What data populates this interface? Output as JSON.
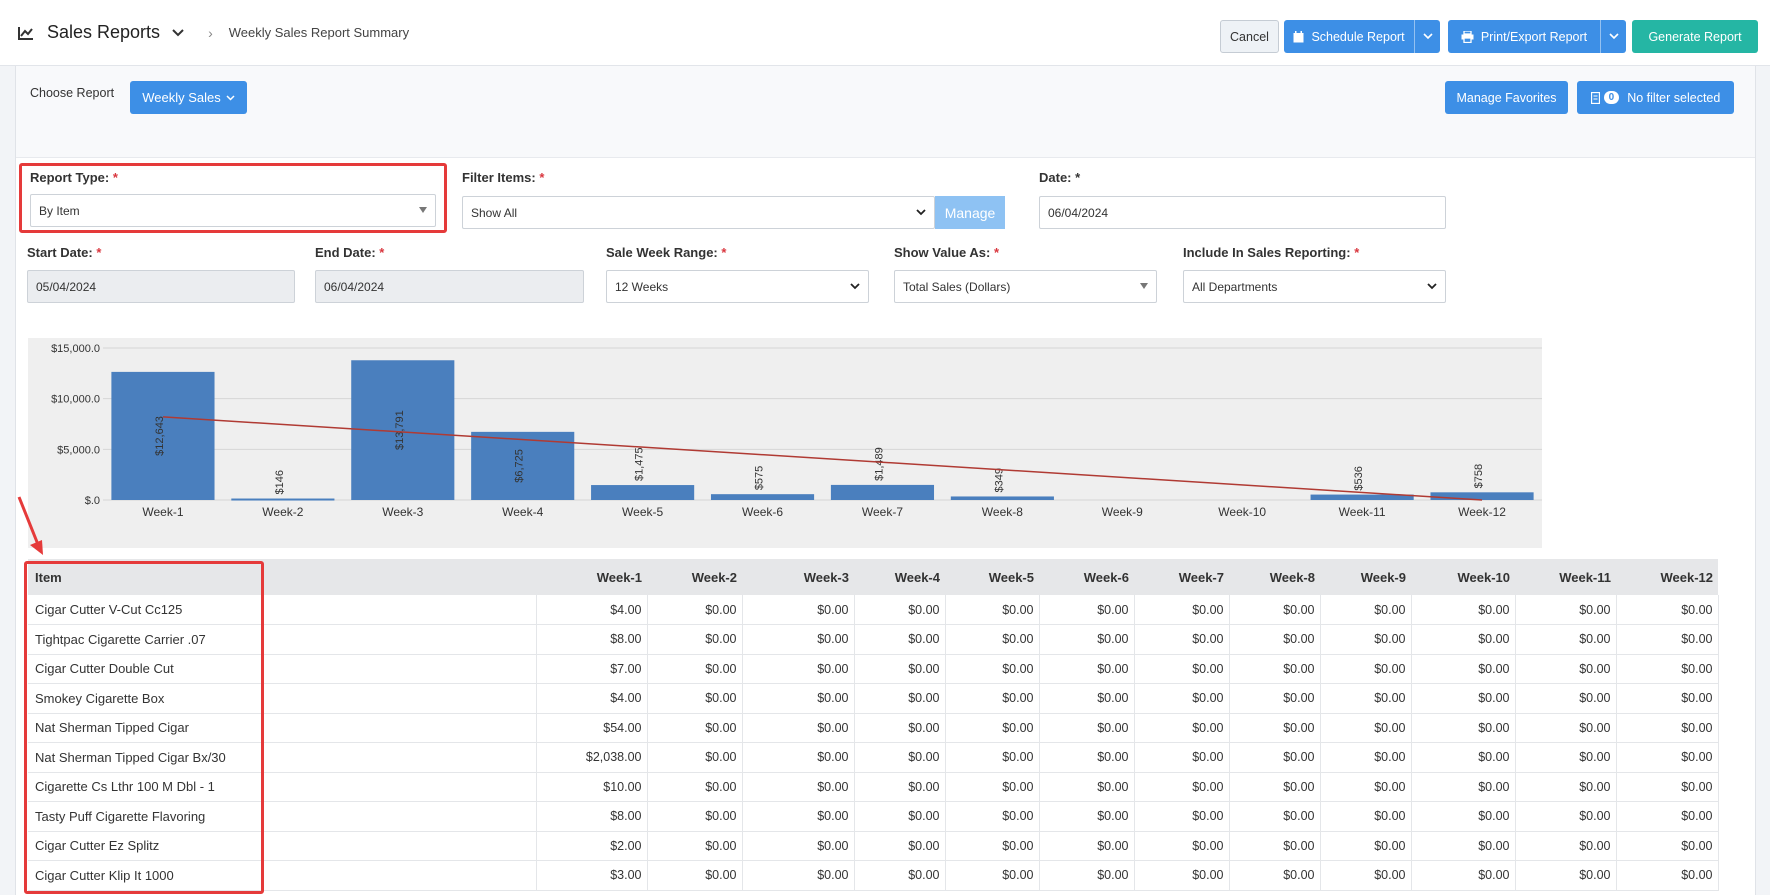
{
  "header": {
    "app_title": "Sales Reports",
    "breadcrumb": "Weekly Sales Report Summary",
    "cancel": "Cancel",
    "schedule": "Schedule Report",
    "print_export": "Print/Export Report",
    "generate": "Generate Report"
  },
  "toolbar": {
    "choose_report_label": "Choose Report",
    "report_selected": "Weekly Sales",
    "manage_favorites": "Manage Favorites",
    "filter_count": "0",
    "filter_label": "No filter selected"
  },
  "form": {
    "report_type_label": "Report Type:",
    "report_type_value": "By Item",
    "filter_items_label": "Filter Items:",
    "filter_items_value": "Show All",
    "manage": "Manage",
    "date_label": "Date:",
    "date_value": "06/04/2024",
    "start_date_label": "Start Date:",
    "start_date_value": "05/04/2024",
    "end_date_label": "End Date:",
    "end_date_value": "06/04/2024",
    "week_range_label": "Sale Week Range:",
    "week_range_value": "12 Weeks",
    "show_value_label": "Show Value As:",
    "show_value_value": "Total Sales (Dollars)",
    "include_label": "Include In Sales Reporting:",
    "include_value": "All Departments",
    "required_mark": "*"
  },
  "chart_data": {
    "type": "bar",
    "categories": [
      "Week-1",
      "Week-2",
      "Week-3",
      "Week-4",
      "Week-5",
      "Week-6",
      "Week-7",
      "Week-8",
      "Week-9",
      "Week-10",
      "Week-11",
      "Week-12"
    ],
    "values": [
      12643,
      146,
      13791,
      6725,
      1475,
      575,
      1489,
      349,
      0,
      0,
      536,
      758
    ],
    "value_labels": [
      "$12,643",
      "$146",
      "$13,791",
      "$6,725",
      "$1,475",
      "$575",
      "$1,489",
      "$349",
      "",
      "",
      "$536",
      "$758"
    ],
    "yticks": [
      "$.0",
      "$5,000.0",
      "$10,000.0",
      "$15,000.0"
    ],
    "ytick_values": [
      0,
      5000,
      10000,
      15000
    ],
    "ylim": [
      0,
      15000
    ],
    "trendline": {
      "start": 8200,
      "end": 0
    },
    "bar_color": "#4a7fbe",
    "trend_color": "#b03a33"
  },
  "table": {
    "columns": [
      "Item",
      "Week-1",
      "Week-2",
      "Week-3",
      "Week-4",
      "Week-5",
      "Week-6",
      "Week-7",
      "Week-8",
      "Week-9",
      "Week-10",
      "Week-11",
      "Week-12"
    ],
    "rows": [
      [
        "Cigar Cutter V-Cut Cc125",
        "$4.00",
        "$0.00",
        "$0.00",
        "$0.00",
        "$0.00",
        "$0.00",
        "$0.00",
        "$0.00",
        "$0.00",
        "$0.00",
        "$0.00",
        "$0.00"
      ],
      [
        "Tightpac Cigarette Carrier .07",
        "$8.00",
        "$0.00",
        "$0.00",
        "$0.00",
        "$0.00",
        "$0.00",
        "$0.00",
        "$0.00",
        "$0.00",
        "$0.00",
        "$0.00",
        "$0.00"
      ],
      [
        "Cigar Cutter Double Cut",
        "$7.00",
        "$0.00",
        "$0.00",
        "$0.00",
        "$0.00",
        "$0.00",
        "$0.00",
        "$0.00",
        "$0.00",
        "$0.00",
        "$0.00",
        "$0.00"
      ],
      [
        "Smokey Cigarette Box",
        "$4.00",
        "$0.00",
        "$0.00",
        "$0.00",
        "$0.00",
        "$0.00",
        "$0.00",
        "$0.00",
        "$0.00",
        "$0.00",
        "$0.00",
        "$0.00"
      ],
      [
        "Nat Sherman Tipped Cigar",
        "$54.00",
        "$0.00",
        "$0.00",
        "$0.00",
        "$0.00",
        "$0.00",
        "$0.00",
        "$0.00",
        "$0.00",
        "$0.00",
        "$0.00",
        "$0.00"
      ],
      [
        "Nat Sherman Tipped Cigar Bx/30",
        "$2,038.00",
        "$0.00",
        "$0.00",
        "$0.00",
        "$0.00",
        "$0.00",
        "$0.00",
        "$0.00",
        "$0.00",
        "$0.00",
        "$0.00",
        "$0.00"
      ],
      [
        "Cigarette Cs Lthr 100 M Dbl - 1",
        "$10.00",
        "$0.00",
        "$0.00",
        "$0.00",
        "$0.00",
        "$0.00",
        "$0.00",
        "$0.00",
        "$0.00",
        "$0.00",
        "$0.00",
        "$0.00"
      ],
      [
        "Tasty Puff Cigarette Flavoring",
        "$8.00",
        "$0.00",
        "$0.00",
        "$0.00",
        "$0.00",
        "$0.00",
        "$0.00",
        "$0.00",
        "$0.00",
        "$0.00",
        "$0.00",
        "$0.00"
      ],
      [
        "Cigar Cutter Ez Splitz",
        "$2.00",
        "$0.00",
        "$0.00",
        "$0.00",
        "$0.00",
        "$0.00",
        "$0.00",
        "$0.00",
        "$0.00",
        "$0.00",
        "$0.00",
        "$0.00"
      ],
      [
        "Cigar Cutter Klip It 1000",
        "$3.00",
        "$0.00",
        "$0.00",
        "$0.00",
        "$0.00",
        "$0.00",
        "$0.00",
        "$0.00",
        "$0.00",
        "$0.00",
        "$0.00",
        "$0.00"
      ]
    ]
  },
  "colors": {
    "primary": "#3d8fe6",
    "teal": "#25b6a4",
    "highlight": "#e53a3a"
  }
}
